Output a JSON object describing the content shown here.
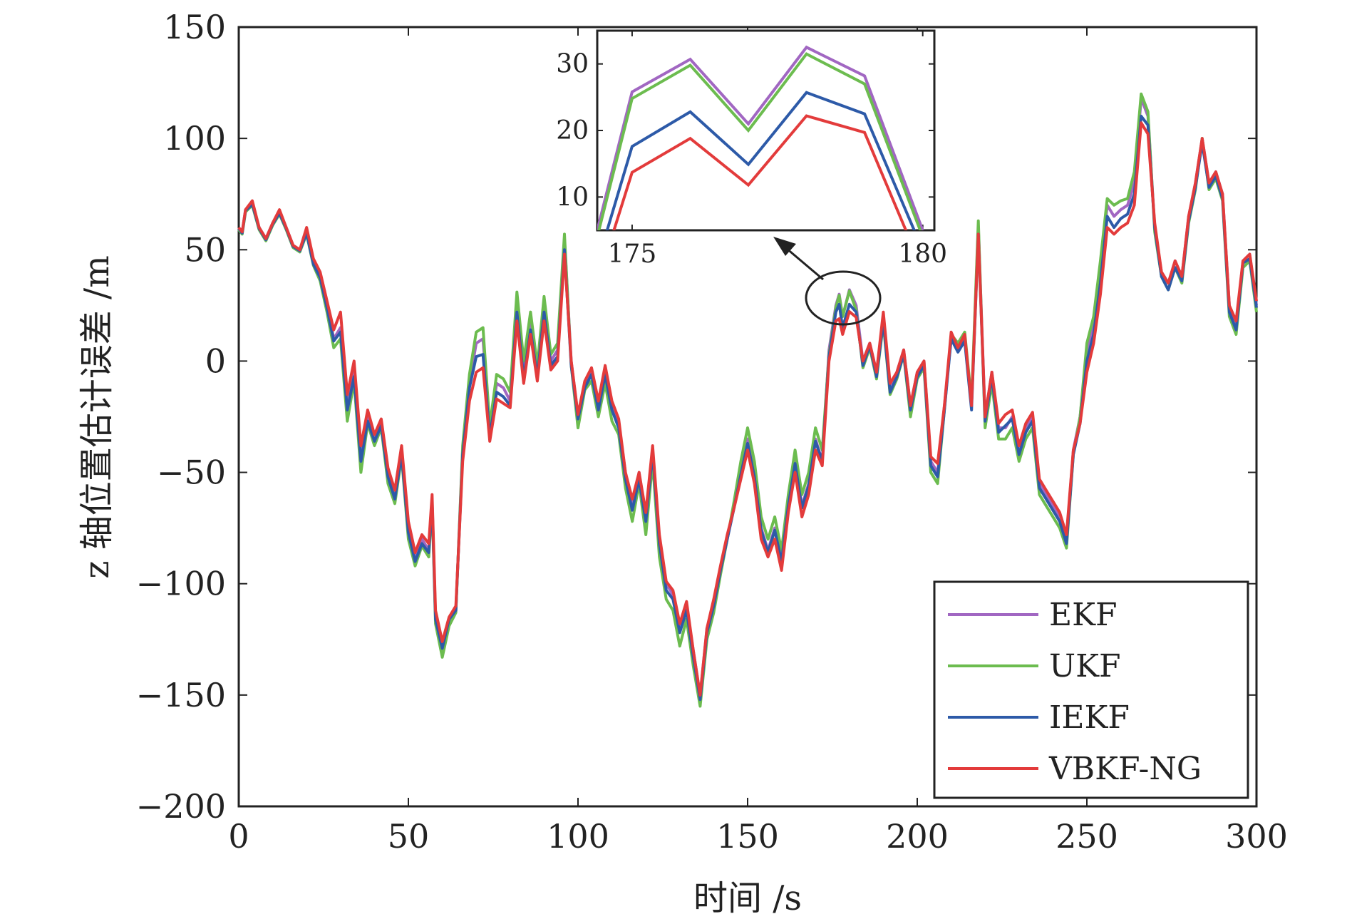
{
  "chart_data": [
    {
      "type": "line",
      "xlabel": "时间 /s",
      "ylabel": "z 轴位置估计误差 /m",
      "xlim": [
        0,
        300
      ],
      "ylim": [
        -200,
        150
      ],
      "xticks": [
        0,
        50,
        100,
        150,
        200,
        250,
        300
      ],
      "xtick_labels": [
        "0",
        "50",
        "100",
        "150",
        "200",
        "250",
        "300"
      ],
      "yticks": [
        -200,
        -150,
        -100,
        -50,
        0,
        50,
        100,
        150
      ],
      "ytick_labels": [
        "−200",
        "−150",
        "−100",
        "−50",
        "0",
        "50",
        "100",
        "150"
      ],
      "grid": false,
      "legend_position": "bottom-right",
      "x": [
        0,
        1,
        2,
        4,
        6,
        8,
        10,
        12,
        14,
        16,
        18,
        20,
        22,
        24,
        26,
        28,
        30,
        32,
        34,
        36,
        38,
        40,
        42,
        44,
        46,
        48,
        50,
        52,
        54,
        56,
        57,
        58,
        60,
        62,
        64,
        66,
        68,
        70,
        72,
        74,
        76,
        78,
        80,
        82,
        84,
        86,
        88,
        90,
        92,
        94,
        96,
        98,
        100,
        102,
        104,
        106,
        108,
        110,
        112,
        114,
        116,
        118,
        120,
        122,
        124,
        126,
        128,
        130,
        132,
        134,
        136,
        138,
        140,
        142,
        144,
        146,
        148,
        150,
        152,
        154,
        156,
        158,
        160,
        162,
        164,
        166,
        168,
        170,
        172,
        174,
        176,
        177,
        178,
        180,
        182,
        184,
        186,
        188,
        190,
        192,
        194,
        196,
        198,
        200,
        202,
        204,
        206,
        208,
        210,
        212,
        214,
        216,
        218,
        220,
        222,
        224,
        226,
        228,
        230,
        232,
        234,
        236,
        238,
        240,
        242,
        244,
        246,
        248,
        250,
        252,
        254,
        256,
        258,
        260,
        262,
        264,
        266,
        268,
        270,
        272,
        274,
        276,
        278,
        280,
        282,
        284,
        286,
        288,
        290,
        292,
        294,
        296,
        298,
        300
      ],
      "series": [
        {
          "name": "EKF",
          "color": "#a167c2",
          "values": [
            60,
            58,
            68,
            71,
            60,
            55,
            62,
            67,
            60,
            52,
            50,
            58,
            44,
            38,
            25,
            10,
            15,
            -20,
            -5,
            -42,
            -25,
            -35,
            -28,
            -50,
            -60,
            -40,
            -75,
            -88,
            -80,
            -85,
            -62,
            -115,
            -130,
            -118,
            -112,
            -40,
            -10,
            8,
            10,
            -32,
            -10,
            -12,
            -18,
            25,
            -5,
            18,
            -5,
            25,
            0,
            5,
            55,
            0,
            -25,
            -10,
            -5,
            -20,
            -5,
            -20,
            -28,
            -50,
            -65,
            -50,
            -70,
            -40,
            -80,
            -100,
            -105,
            -120,
            -110,
            -130,
            -150,
            -120,
            -110,
            -95,
            -80,
            -65,
            -50,
            -35,
            -50,
            -75,
            -85,
            -75,
            -90,
            -65,
            -45,
            -65,
            -55,
            -35,
            -45,
            5,
            25,
            30,
            20,
            32,
            25,
            0,
            8,
            -5,
            20,
            -12,
            -5,
            5,
            -20,
            -5,
            0,
            -45,
            -50,
            -20,
            10,
            5,
            10,
            -20,
            60,
            -25,
            -5,
            -30,
            -30,
            -25,
            -40,
            -30,
            -25,
            -55,
            -60,
            -65,
            -70,
            -80,
            -40,
            -25,
            5,
            15,
            40,
            70,
            65,
            68,
            70,
            80,
            118,
            110,
            60,
            40,
            35,
            45,
            38,
            65,
            80,
            100,
            80,
            85,
            75,
            25,
            15,
            45,
            48,
            25
          ]
        },
        {
          "name": "UKF",
          "color": "#6cbc4f",
          "values": [
            59,
            57,
            67,
            70,
            59,
            54,
            61,
            66,
            59,
            51,
            49,
            57,
            43,
            36,
            22,
            6,
            10,
            -27,
            -9,
            -50,
            -28,
            -38,
            -30,
            -55,
            -64,
            -43,
            -80,
            -92,
            -83,
            -88,
            -64,
            -118,
            -133,
            -119,
            -113,
            -38,
            -6,
            13,
            15,
            -29,
            -6,
            -8,
            -14,
            31,
            0,
            22,
            -2,
            29,
            3,
            8,
            57,
            -2,
            -30,
            -13,
            -9,
            -25,
            -10,
            -27,
            -33,
            -57,
            -72,
            -55,
            -78,
            -45,
            -88,
            -107,
            -112,
            -128,
            -116,
            -137,
            -155,
            -125,
            -113,
            -96,
            -80,
            -63,
            -45,
            -30,
            -45,
            -70,
            -80,
            -70,
            -85,
            -60,
            -40,
            -60,
            -50,
            -30,
            -40,
            3,
            24,
            29.5,
            20,
            31.5,
            23,
            -3,
            6,
            -8,
            17,
            -15,
            -8,
            3,
            -25,
            -8,
            -3,
            -50,
            -55,
            -22,
            12,
            8,
            13,
            -18,
            63,
            -30,
            -10,
            -35,
            -35,
            -30,
            -45,
            -35,
            -30,
            -60,
            -65,
            -70,
            -75,
            -84,
            -42,
            -25,
            8,
            20,
            45,
            73,
            70,
            72,
            73,
            85,
            120,
            112,
            58,
            38,
            32,
            42,
            35,
            62,
            77,
            100,
            77,
            82,
            72,
            20,
            12,
            42,
            45,
            22
          ]
        },
        {
          "name": "IEKF",
          "color": "#2d5aa8",
          "values": [
            59.5,
            57.5,
            67.5,
            70.5,
            59.5,
            54.5,
            61.5,
            66.5,
            59.5,
            51.5,
            49.5,
            57.5,
            43.5,
            37.5,
            24,
            9,
            13,
            -22,
            -7,
            -45,
            -27,
            -36,
            -29,
            -52,
            -62,
            -42,
            -77,
            -90,
            -82,
            -86,
            -63,
            -116,
            -129,
            -116,
            -112,
            -42,
            -12,
            2,
            3,
            -34,
            -14,
            -16,
            -20,
            22,
            -8,
            14,
            -7,
            22,
            -2,
            2,
            50,
            -2,
            -26,
            -12,
            -6,
            -22,
            -6,
            -22,
            -30,
            -53,
            -67,
            -53,
            -72,
            -41,
            -82,
            -103,
            -107,
            -122,
            -112,
            -133,
            -152,
            -122,
            -110,
            -94,
            -80,
            -66,
            -51,
            -37,
            -52,
            -76,
            -86,
            -76,
            -90,
            -65,
            -46,
            -66,
            -56,
            -36,
            -45,
            2,
            22,
            25.5,
            15,
            25.5,
            22,
            -2,
            7,
            -7,
            18,
            -14,
            -7,
            3,
            -22,
            -7,
            -2,
            -47,
            -52,
            -22,
            10,
            4,
            9,
            -22,
            57,
            -27,
            -7,
            -32,
            -29,
            -26,
            -42,
            -32,
            -27,
            -57,
            -62,
            -67,
            -72,
            -82,
            -42,
            -28,
            0,
            12,
            35,
            65,
            60,
            64,
            66,
            75,
            110,
            106,
            60,
            38,
            32,
            42,
            36,
            63,
            78,
            98,
            78,
            83,
            73,
            22,
            14,
            44,
            46,
            24
          ]
        },
        {
          "name": "VBKF-NG",
          "color": "#e33b3b",
          "values": [
            60,
            58,
            68,
            72,
            60,
            55,
            62,
            68,
            60,
            52,
            50,
            60,
            46,
            40,
            27,
            14,
            22,
            -15,
            0,
            -38,
            -22,
            -33,
            -26,
            -48,
            -58,
            -38,
            -72,
            -86,
            -78,
            -82,
            -60,
            -112,
            -126,
            -115,
            -110,
            -45,
            -18,
            -5,
            -3,
            -36,
            -17,
            -19,
            -21,
            18,
            -10,
            12,
            -9,
            18,
            -4,
            0,
            48,
            0,
            -24,
            -9,
            -3,
            -18,
            -2,
            -18,
            -26,
            -50,
            -62,
            -50,
            -68,
            -38,
            -78,
            -99,
            -103,
            -118,
            -108,
            -130,
            -150,
            -120,
            -107,
            -92,
            -78,
            -66,
            -53,
            -40,
            -55,
            -80,
            -88,
            -80,
            -94,
            -68,
            -50,
            -70,
            -60,
            -40,
            -47,
            0,
            18,
            19,
            12,
            22.2,
            19.7,
            0,
            8,
            -5,
            22,
            -10,
            -5,
            5,
            -20,
            -5,
            0,
            -43,
            -46,
            -20,
            13,
            6,
            12,
            -20,
            57,
            -25,
            -5,
            -28,
            -24,
            -22,
            -38,
            -28,
            -23,
            -53,
            -58,
            -63,
            -68,
            -78,
            -40,
            -28,
            -5,
            8,
            30,
            60,
            57,
            60,
            62,
            70,
            107,
            102,
            62,
            40,
            35,
            45,
            38,
            65,
            80,
            100,
            80,
            85,
            75,
            25,
            18,
            45,
            48,
            27
          ]
        }
      ]
    },
    {
      "type": "line",
      "xlim": [
        174.4,
        180.2
      ],
      "ylim": [
        5,
        35
      ],
      "xticks": [
        175,
        180
      ],
      "xtick_labels": [
        "175",
        "180"
      ],
      "yticks": [
        10,
        20,
        30
      ],
      "ytick_labels": [
        "10",
        "20",
        "30"
      ],
      "x": [
        174.4,
        175,
        176,
        177,
        178,
        179,
        180
      ],
      "series": [
        {
          "name": "EKF",
          "color": "#a167c2",
          "values": [
            5,
            25.8,
            30.7,
            21,
            32.5,
            28.2,
            5
          ]
        },
        {
          "name": "UKF",
          "color": "#6cbc4f",
          "values": [
            4,
            24.8,
            29.8,
            20,
            31.5,
            27,
            4
          ]
        },
        {
          "name": "IEKF",
          "color": "#2d5aa8",
          "values": [
            0,
            17.6,
            22.8,
            14.9,
            25.7,
            22.5,
            2
          ]
        },
        {
          "name": "VBKF-NG",
          "color": "#e33b3b",
          "values": [
            -3,
            13.7,
            18.8,
            11.8,
            22.2,
            19.7,
            -1
          ]
        }
      ]
    }
  ]
}
